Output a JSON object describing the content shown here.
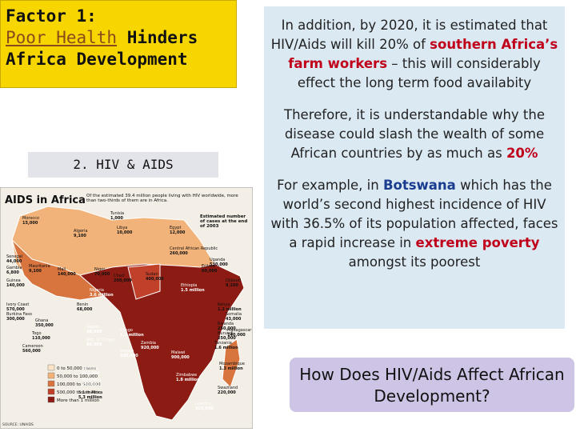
{
  "header": {
    "line1": "Factor 1:",
    "link": "Poor Health",
    "rest": "Hinders Africa Development"
  },
  "section_label": "2. HIV & AIDS",
  "map": {
    "title": "AIDS in Africa",
    "intro": "Of the estimated 39.4 million people living with HIV worldwide, more than two-thirds of them are in Africa.",
    "cases_note": "Estimated number of cases at the end of 2003",
    "legend": [
      "0 to 50,000 cases",
      "50,000 to 100,000",
      "100,000 to 500,000",
      "500,000 to 1 million",
      "More than 1 million"
    ],
    "source": "SOURCE: UNAIDS",
    "countries": [
      {
        "name": "Morocco",
        "cases": "15,000"
      },
      {
        "name": "Algeria",
        "cases": "9,100"
      },
      {
        "name": "Tunisia",
        "cases": "1,000"
      },
      {
        "name": "Libya",
        "cases": "10,000"
      },
      {
        "name": "Egypt",
        "cases": "12,000"
      },
      {
        "name": "Senegal",
        "cases": "44,000"
      },
      {
        "name": "Mauritania",
        "cases": "9,100"
      },
      {
        "name": "Gambia",
        "cases": "6,800"
      },
      {
        "name": "Mali",
        "cases": "140,000"
      },
      {
        "name": "Niger",
        "cases": "70,000"
      },
      {
        "name": "Chad",
        "cases": "200,000"
      },
      {
        "name": "Sudan",
        "cases": "400,000"
      },
      {
        "name": "Eritrea",
        "cases": "60,000"
      },
      {
        "name": "Djibouti",
        "cases": "9,100"
      },
      {
        "name": "Ethiopia",
        "cases": "1.5 million"
      },
      {
        "name": "Guinea",
        "cases": "140,000"
      },
      {
        "name": "Ivory Coast",
        "cases": "570,000"
      },
      {
        "name": "Burkina Faso",
        "cases": "300,000"
      },
      {
        "name": "Ghana",
        "cases": "350,000"
      },
      {
        "name": "Togo",
        "cases": "110,000"
      },
      {
        "name": "Benin",
        "cases": "68,000"
      },
      {
        "name": "Nigeria",
        "cases": "3.6 million"
      },
      {
        "name": "Cameroon",
        "cases": "560,000"
      },
      {
        "name": "Central African Republic",
        "cases": "260,000"
      },
      {
        "name": "Uganda",
        "cases": "530,000"
      },
      {
        "name": "Kenya",
        "cases": "1.2 million"
      },
      {
        "name": "Somalia",
        "cases": "43,000"
      },
      {
        "name": "Gabon",
        "cases": "48,000"
      },
      {
        "name": "Congo",
        "cases": "1.1 million"
      },
      {
        "name": "Rep. of Congo",
        "cases": "80,000"
      },
      {
        "name": "Rwanda",
        "cases": "250,000"
      },
      {
        "name": "Burundi",
        "cases": "250,000"
      },
      {
        "name": "Tanzania",
        "cases": "1.6 million"
      },
      {
        "name": "Angola",
        "cases": "240,000"
      },
      {
        "name": "Zambia",
        "cases": "920,000"
      },
      {
        "name": "Malawi",
        "cases": "900,000"
      },
      {
        "name": "Mozambique",
        "cases": "1.3 million"
      },
      {
        "name": "Zimbabwe",
        "cases": "1.8 million"
      },
      {
        "name": "Madagascar",
        "cases": "140,000"
      },
      {
        "name": "Namibia",
        "cases": "210,000"
      },
      {
        "name": "Botswana",
        "cases": "350,000"
      },
      {
        "name": "South Africa",
        "cases": "5.3 million"
      },
      {
        "name": "Swaziland",
        "cases": "220,000"
      },
      {
        "name": "Lesotho",
        "cases": "320,000"
      }
    ]
  },
  "paragraphs": [
    [
      {
        "text": "In addition, by 2020, it is estimated that HIV/Aids will kill 20% of "
      },
      {
        "text": "southern Africa’s farm workers",
        "em": true
      },
      {
        "text": " – this will considerably  effect the long term food availabity"
      }
    ],
    [
      {
        "text": "Therefore, it is understandable why the disease could slash the wealth of some African countries by as much as "
      },
      {
        "text": "20%",
        "em": true
      }
    ],
    [
      {
        "text": "For example, in "
      },
      {
        "text": "Botswana",
        "hl": true
      },
      {
        "text": " which has the world’s second highest incidence of HIV with 36.5% of its population affected, faces a rapid increase in "
      },
      {
        "text": "extreme poverty",
        "em": true
      },
      {
        "text": " amongst its poorest"
      }
    ]
  ],
  "question": "How Does HIV/Aids Affect African Development?"
}
